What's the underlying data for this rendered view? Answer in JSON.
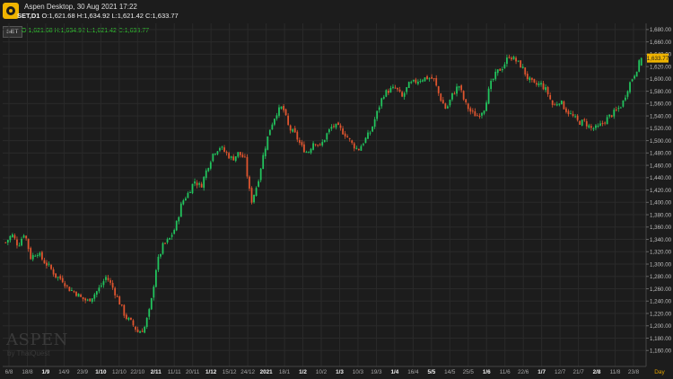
{
  "window": {
    "title": "Aspen Desktop, 30 Aug 2021 17:22"
  },
  "symbol": {
    "code": "SET,D1",
    "ohlc": "O:1,621.68 H:1,634.92 L:1,621.42 C:1,633.77",
    "tag": "SET"
  },
  "watermark": {
    "brand": "ASPEN",
    "by": "by ThaiQuest"
  },
  "price_label": "1,633.77",
  "day_label": "Day",
  "colors": {
    "up": "#22c55e",
    "down": "#e0552f",
    "bg": "#1c1c1c",
    "grid": "#2a2a2a",
    "price_tag": "#f0b400"
  },
  "chart_data": {
    "type": "candlestick",
    "title": "",
    "xlabel": "",
    "ylabel": "",
    "ylim": [
      1140,
      1690
    ],
    "y_ticks": [
      "1,680.00",
      "1,660.00",
      "1,640.00",
      "1,620.00",
      "1,600.00",
      "1,580.00",
      "1,560.00",
      "1,540.00",
      "1,520.00",
      "1,500.00",
      "1,480.00",
      "1,460.00",
      "1,440.00",
      "1,420.00",
      "1,400.00",
      "1,380.00",
      "1,360.00",
      "1,340.00",
      "1,320.00",
      "1,300.00",
      "1,280.00",
      "1,260.00",
      "1,240.00",
      "1,220.00",
      "1,200.00",
      "1,180.00",
      "1,160.00"
    ],
    "x_ticks": [
      "6/8",
      "18/8",
      "1/9",
      "14/9",
      "23/9",
      "1/10",
      "12/10",
      "22/10",
      "2/11",
      "11/11",
      "20/11",
      "1/12",
      "15/12",
      "24/12",
      "2021",
      "18/1",
      "1/2",
      "10/2",
      "1/3",
      "10/3",
      "19/3",
      "1/4",
      "16/4",
      "5/5",
      "14/5",
      "25/5",
      "1/6",
      "11/6",
      "22/6",
      "1/7",
      "12/7",
      "21/7",
      "2/8",
      "11/8",
      "23/8"
    ],
    "bold_ticks": [
      "1/9",
      "1/10",
      "2/11",
      "1/12",
      "2021",
      "1/2",
      "1/3",
      "1/4",
      "5/5",
      "1/6",
      "1/7",
      "2/8"
    ],
    "close_path": [
      1335,
      1348,
      1330,
      1352,
      1310,
      1320,
      1305,
      1295,
      1280,
      1275,
      1260,
      1255,
      1245,
      1240,
      1250,
      1262,
      1280,
      1262,
      1240,
      1215,
      1205,
      1190,
      1195,
      1230,
      1300,
      1330,
      1340,
      1360,
      1400,
      1415,
      1435,
      1425,
      1455,
      1480,
      1490,
      1480,
      1470,
      1480,
      1470,
      1400,
      1430,
      1480,
      1520,
      1545,
      1555,
      1520,
      1510,
      1490,
      1480,
      1500,
      1490,
      1510,
      1525,
      1520,
      1510,
      1495,
      1485,
      1500,
      1515,
      1545,
      1575,
      1582,
      1585,
      1570,
      1590,
      1595,
      1600,
      1602,
      1600,
      1570,
      1550,
      1575,
      1590,
      1560,
      1545,
      1540,
      1552,
      1590,
      1610,
      1620,
      1638,
      1630,
      1620,
      1600,
      1590,
      1592,
      1580,
      1555,
      1565,
      1550,
      1540,
      1530,
      1530,
      1520,
      1520,
      1530,
      1540,
      1548,
      1560,
      1590,
      1610,
      1634
    ],
    "last_price": 1633.77,
    "intervals": [
      "Day"
    ]
  }
}
